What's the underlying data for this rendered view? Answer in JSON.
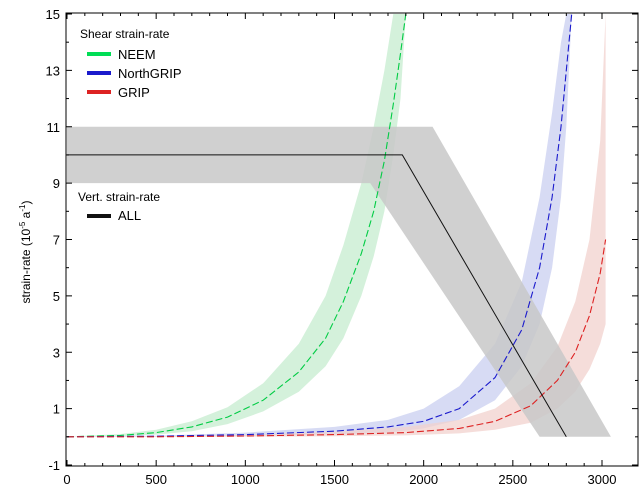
{
  "chart_data": {
    "type": "line",
    "title": "",
    "xlabel": "",
    "ylabel_main": "strain-rate (10",
    "ylabel_exp": "-5",
    "ylabel_unit": " a",
    "ylabel_unit_exp": "-1",
    "ylabel_close": ")",
    "xlim": [
      0,
      3100
    ],
    "ylim": [
      -1,
      15
    ],
    "x_ticks": [
      "0",
      "500",
      "1000",
      "1500",
      "2000",
      "2500",
      "3000"
    ],
    "y_ticks": [
      "-1",
      "1",
      "3",
      "5",
      "7",
      "9",
      "11",
      "13",
      "15"
    ],
    "grid": false,
    "legend_shear_title": "Shear strain-rate",
    "legend_vert_title": "Vert. strain-rate",
    "series": [
      {
        "name": "NEEM",
        "color": "#00cc44",
        "band_color": "#c6eccf",
        "x": [
          0,
          300,
          500,
          700,
          900,
          1100,
          1300,
          1450,
          1550,
          1650,
          1720,
          1780,
          1830,
          1870,
          1900
        ],
        "y": [
          0,
          0.05,
          0.15,
          0.35,
          0.7,
          1.3,
          2.3,
          3.5,
          4.8,
          6.5,
          8.0,
          9.8,
          11.8,
          13.6,
          15.0
        ],
        "band_low": [
          0,
          0.02,
          0.08,
          0.2,
          0.45,
          0.9,
          1.6,
          2.5,
          3.5,
          5.0,
          6.4,
          8.0,
          10.0,
          12.0,
          15.0
        ],
        "band_high": [
          0,
          0.1,
          0.25,
          0.55,
          1.05,
          1.9,
          3.3,
          5.0,
          6.8,
          9.0,
          11.0,
          13.0,
          15.0,
          15.0,
          15.0
        ]
      },
      {
        "name": "NorthGRIP",
        "color": "#1a1acc",
        "band_color": "#c9cff0",
        "x": [
          0,
          500,
          1000,
          1500,
          1800,
          2000,
          2200,
          2400,
          2550,
          2650,
          2720,
          2770,
          2800,
          2830
        ],
        "y": [
          0,
          0.02,
          0.08,
          0.2,
          0.35,
          0.55,
          1.0,
          2.1,
          3.8,
          6.0,
          8.5,
          11.0,
          13.0,
          15.0
        ],
        "band_low": [
          0,
          0.0,
          0.03,
          0.08,
          0.15,
          0.3,
          0.6,
          1.3,
          2.5,
          4.0,
          6.0,
          8.5,
          11.0,
          15.0
        ],
        "band_high": [
          0,
          0.04,
          0.15,
          0.35,
          0.6,
          1.0,
          1.8,
          3.3,
          5.5,
          8.5,
          11.5,
          14.0,
          15.0,
          15.0
        ]
      },
      {
        "name": "GRIP",
        "color": "#dd2222",
        "band_color": "#f2d1cd",
        "x": [
          0,
          500,
          1000,
          1500,
          1900,
          2200,
          2400,
          2600,
          2750,
          2850,
          2930,
          2990,
          3020
        ],
        "y": [
          0,
          0.0,
          0.03,
          0.08,
          0.15,
          0.3,
          0.55,
          1.1,
          2.0,
          3.0,
          4.3,
          5.8,
          7.0
        ],
        "band_low": [
          0,
          0.0,
          0.0,
          0.02,
          0.05,
          0.12,
          0.25,
          0.5,
          1.0,
          1.6,
          2.4,
          3.3,
          4.0
        ],
        "band_high": [
          0,
          0.02,
          0.07,
          0.18,
          0.35,
          0.6,
          1.0,
          1.9,
          3.2,
          4.8,
          7.0,
          10.5,
          15.0
        ]
      },
      {
        "name": "ALL",
        "color": "#111111",
        "band_color": "#c8c8c8",
        "x": [
          0,
          1880,
          2800
        ],
        "y": [
          10,
          10,
          0
        ],
        "band_polygon": [
          [
            0,
            11
          ],
          [
            2050,
            11
          ],
          [
            3050,
            0
          ],
          [
            2650,
            0
          ],
          [
            1700,
            9
          ],
          [
            0,
            9
          ]
        ]
      }
    ]
  }
}
